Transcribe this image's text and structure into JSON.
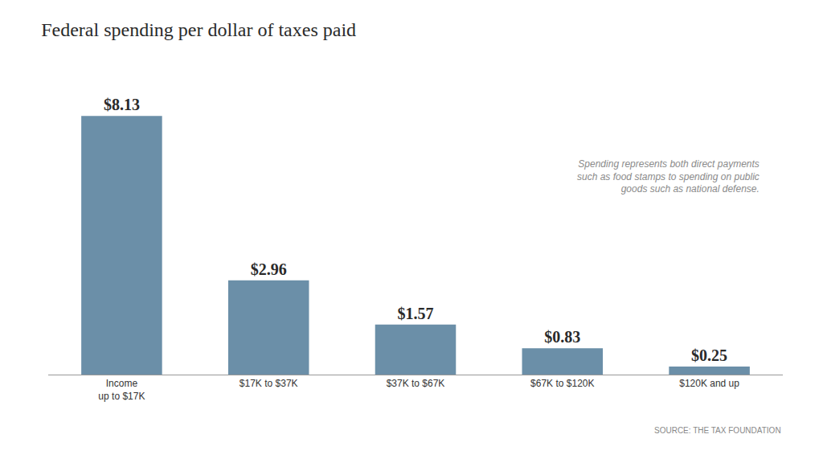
{
  "chart_data": {
    "type": "bar",
    "title": "Federal spending per dollar of taxes paid",
    "categories": [
      "Income\nup to $17K",
      "$17K to $37K",
      "$37K to $67K",
      "$67K to $120K",
      "$120K and up"
    ],
    "values": [
      8.13,
      2.96,
      1.57,
      0.83,
      0.25
    ],
    "value_labels": [
      "$8.13",
      "$2.96",
      "$1.57",
      "$0.83",
      "$0.25"
    ],
    "data_labels": true,
    "color": "#6b8fa8",
    "ylim": [
      0,
      9.5
    ],
    "tick_labels": "x",
    "grid": false,
    "annotations": [
      "Spending represents both direct payments\nsuch as food stamps to spending on public\ngoods such as national defense.",
      "SOURCE: THE TAX FOUNDATION"
    ]
  }
}
